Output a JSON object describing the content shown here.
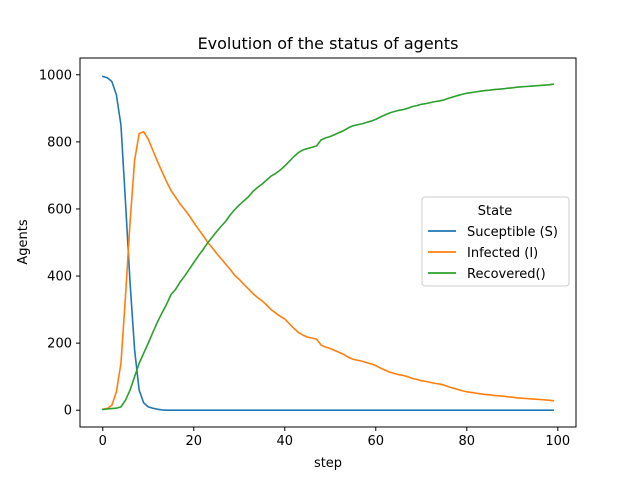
{
  "chart_data": {
    "type": "line",
    "title": "Evolution of the status of agents",
    "xlabel": "step",
    "ylabel": "Agents",
    "xlim": [
      -5,
      104
    ],
    "ylim": [
      -50,
      1050
    ],
    "grid": false,
    "x_ticks": [
      0,
      20,
      40,
      60,
      80,
      100
    ],
    "y_ticks": [
      0,
      200,
      400,
      600,
      800,
      1000
    ],
    "legend": {
      "title": "State",
      "placement": "center-right"
    },
    "x": [
      0,
      1,
      2,
      3,
      4,
      5,
      6,
      7,
      8,
      9,
      10,
      11,
      12,
      13,
      14,
      15,
      16,
      17,
      18,
      19,
      20,
      21,
      22,
      23,
      24,
      25,
      26,
      27,
      28,
      29,
      30,
      31,
      32,
      33,
      34,
      35,
      36,
      37,
      38,
      39,
      40,
      41,
      42,
      43,
      44,
      45,
      46,
      47,
      48,
      49,
      50,
      51,
      52,
      53,
      54,
      55,
      56,
      57,
      58,
      59,
      60,
      61,
      62,
      63,
      64,
      65,
      66,
      67,
      68,
      69,
      70,
      71,
      72,
      73,
      74,
      75,
      76,
      77,
      78,
      79,
      80,
      81,
      82,
      83,
      84,
      85,
      86,
      87,
      88,
      89,
      90,
      91,
      92,
      93,
      94,
      95,
      96,
      97,
      98,
      99
    ],
    "series": [
      {
        "name": "Suceptible (S)",
        "color": "#1f77b4",
        "values": [
          995,
          991,
          980,
          940,
          850,
          620,
          380,
          180,
          60,
          22,
          10,
          6,
          3,
          1,
          0,
          0,
          0,
          0,
          0,
          0,
          0,
          0,
          0,
          0,
          0,
          0,
          0,
          0,
          0,
          0,
          0,
          0,
          0,
          0,
          0,
          0,
          0,
          0,
          0,
          0,
          0,
          0,
          0,
          0,
          0,
          0,
          0,
          0,
          0,
          0,
          0,
          0,
          0,
          0,
          0,
          0,
          0,
          0,
          0,
          0,
          0,
          0,
          0,
          0,
          0,
          0,
          0,
          0,
          0,
          0,
          0,
          0,
          0,
          0,
          0,
          0,
          0,
          0,
          0,
          0,
          0,
          0,
          0,
          0,
          0,
          0,
          0,
          0,
          0,
          0,
          0,
          0,
          0,
          0,
          0,
          0,
          0,
          0,
          0,
          0
        ]
      },
      {
        "name": "Infected (I)",
        "color": "#ff7f0e",
        "values": [
          3,
          5,
          15,
          55,
          140,
          340,
          560,
          745,
          825,
          830,
          808,
          775,
          742,
          712,
          682,
          655,
          635,
          615,
          598,
          580,
          560,
          540,
          522,
          502,
          485,
          468,
          452,
          436,
          420,
          402,
          390,
          375,
          362,
          348,
          336,
          326,
          314,
          300,
          290,
          280,
          272,
          258,
          244,
          232,
          224,
          218,
          215,
          212,
          194,
          188,
          184,
          178,
          172,
          166,
          158,
          152,
          149,
          146,
          142,
          138,
          133,
          126,
          120,
          114,
          110,
          106,
          104,
          100,
          95,
          92,
          88,
          86,
          83,
          80,
          78,
          75,
          70,
          66,
          62,
          58,
          55,
          53,
          51,
          49,
          47,
          46,
          44,
          43,
          42,
          40,
          39,
          37,
          36,
          35,
          34,
          33,
          32,
          31,
          30,
          28
        ]
      },
      {
        "name": "Recovered()",
        "color": "#2ca02c",
        "values": [
          2,
          4,
          5,
          6,
          10,
          30,
          60,
          100,
          140,
          170,
          200,
          232,
          262,
          290,
          315,
          345,
          360,
          382,
          400,
          420,
          440,
          460,
          478,
          498,
          515,
          532,
          548,
          563,
          582,
          598,
          612,
          624,
          636,
          652,
          664,
          674,
          686,
          698,
          706,
          716,
          728,
          742,
          756,
          768,
          776,
          780,
          784,
          788,
          806,
          812,
          816,
          822,
          828,
          834,
          842,
          848,
          851,
          854,
          858,
          862,
          867,
          874,
          880,
          886,
          890,
          894,
          896,
          900,
          905,
          908,
          912,
          914,
          917,
          920,
          922,
          925,
          930,
          934,
          938,
          942,
          945,
          947,
          949,
          951,
          953,
          954,
          956,
          957,
          958,
          960,
          961,
          963,
          964,
          965,
          966,
          967,
          968,
          969,
          970,
          972
        ]
      }
    ]
  }
}
